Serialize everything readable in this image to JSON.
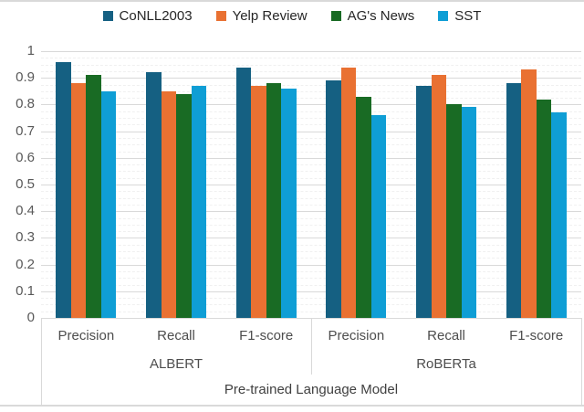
{
  "chart_data": {
    "type": "bar",
    "title": "",
    "xlabel": "Pre-trained Language Model",
    "ylabel": "",
    "ylim": [
      0,
      1
    ],
    "y_ticks": [
      "1",
      "0.9",
      "0.8",
      "0.7",
      "0.6",
      "0.5",
      "0.4",
      "0.3",
      "0.2",
      "0.1",
      "0"
    ],
    "grid": {
      "major_unit": 0.1,
      "minor_unit": 0.025,
      "major_on": true,
      "minor_on": true
    },
    "legend_position": "top",
    "group_axis_label": "Pre-trained Language Model",
    "model_groups": [
      {
        "label": "ALBERT",
        "categories": [
          "Precision",
          "Recall",
          "F1-score"
        ]
      },
      {
        "label": "RoBERTa",
        "categories": [
          "Precision",
          "Recall",
          "F1-score"
        ]
      }
    ],
    "categories": [
      "Precision",
      "Recall",
      "F1-score",
      "Precision",
      "Recall",
      "F1-score"
    ],
    "series": [
      {
        "name": "CoNLL2003",
        "color": "#156082",
        "values": [
          0.96,
          0.92,
          0.94,
          0.89,
          0.87,
          0.88
        ]
      },
      {
        "name": "Yelp Review",
        "color": "#E97132",
        "values": [
          0.88,
          0.85,
          0.87,
          0.94,
          0.91,
          0.93
        ]
      },
      {
        "name": "AG's News",
        "color": "#196B24",
        "values": [
          0.91,
          0.84,
          0.88,
          0.83,
          0.8,
          0.82
        ]
      },
      {
        "name": "SST",
        "color": "#0F9ED5",
        "values": [
          0.85,
          0.87,
          0.86,
          0.76,
          0.79,
          0.77
        ]
      }
    ]
  },
  "colors": {
    "major_gridline": "#d9d9d9",
    "minor_gridline": "#f0f0f0",
    "axis_line": "#d9d9d9",
    "tick_label": "#595959",
    "category_label": "#4d4d4d",
    "legend_text": "#262626",
    "border": "#d9d9d9",
    "background": "#ffffff"
  }
}
